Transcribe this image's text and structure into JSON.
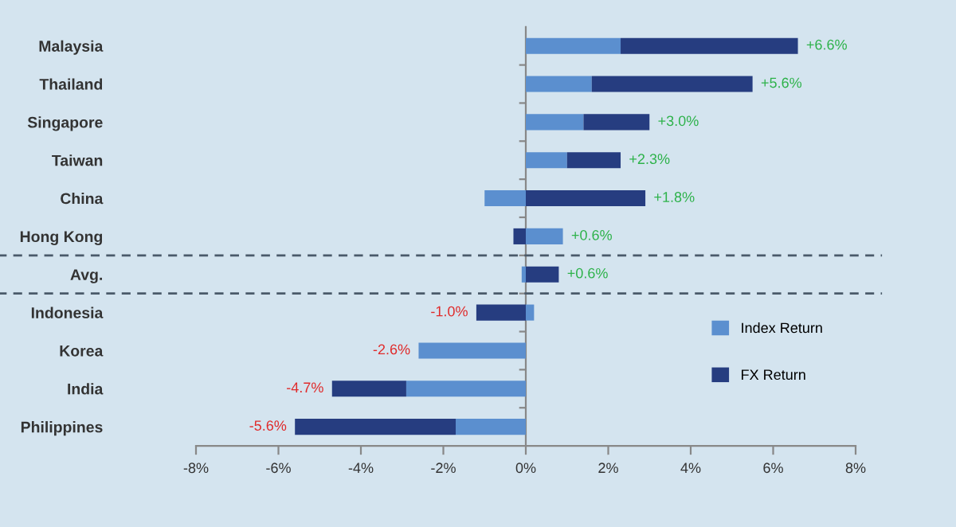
{
  "chart_data": {
    "type": "bar",
    "orientation": "horizontal",
    "stacked": true,
    "categories": [
      "Malaysia",
      "Thailand",
      "Singapore",
      "Taiwan",
      "China",
      "Hong Kong",
      "Avg.",
      "Indonesia",
      "Korea",
      "India",
      "Philippines"
    ],
    "series": [
      {
        "name": "Index Return",
        "color": "#5b8fcf",
        "values": [
          2.3,
          1.6,
          1.4,
          1.0,
          -1.0,
          0.9,
          -0.1,
          0.2,
          -2.6,
          -2.9,
          -1.7
        ]
      },
      {
        "name": "FX Return",
        "color": "#263d80",
        "values": [
          4.3,
          3.9,
          1.6,
          1.3,
          2.9,
          -0.3,
          0.8,
          -1.2,
          null,
          -1.8,
          -3.9
        ]
      }
    ],
    "totals": [
      "+6.6%",
      "+5.6%",
      "+3.0%",
      "+2.3%",
      "+1.8%",
      "+0.6%",
      "+0.6%",
      "-1.0%",
      "-2.6%",
      "-4.7%",
      "-5.6%"
    ],
    "xlim": [
      -8,
      8
    ],
    "xticks": [
      {
        "value": -8,
        "label": "-8%"
      },
      {
        "value": -6,
        "label": "-6%"
      },
      {
        "value": -4,
        "label": "-4%"
      },
      {
        "value": -2,
        "label": "-2%"
      },
      {
        "value": 0,
        "label": "0%"
      },
      {
        "value": 2,
        "label": "2%"
      },
      {
        "value": 4,
        "label": "4%"
      },
      {
        "value": 6,
        "label": "6%"
      },
      {
        "value": 8,
        "label": "8%"
      }
    ],
    "legend": "bottom right",
    "grid": false
  }
}
